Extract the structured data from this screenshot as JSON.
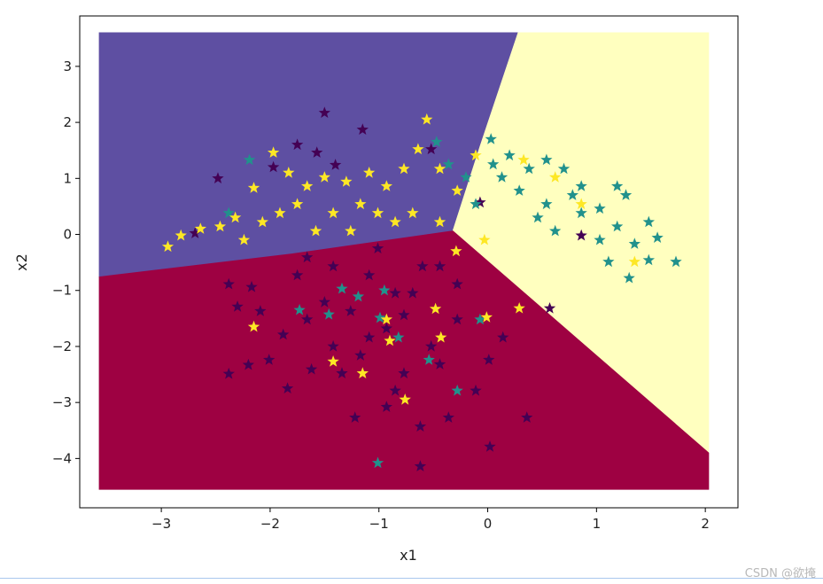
{
  "chart_data": {
    "type": "scatter",
    "title": "",
    "xlabel": "x1",
    "ylabel": "x2",
    "xlim": [
      -3.75,
      2.3
    ],
    "ylim": [
      -4.88,
      3.9
    ],
    "xticks": [
      -3,
      -2,
      -1,
      0,
      1,
      2
    ],
    "yticks": [
      3,
      2,
      1,
      0,
      -1,
      -2,
      -3,
      -4
    ],
    "xtick_labels": [
      "−3",
      "−2",
      "−1",
      "0",
      "1",
      "2"
    ],
    "ytick_labels": [
      "3",
      "2",
      "1",
      "0",
      "−1",
      "−2",
      "−3",
      "−4"
    ],
    "grid": false,
    "marker": "star",
    "regions": [
      {
        "class": 0,
        "color": "#5e4fa2",
        "polygon": [
          [
            -3.57,
            3.6
          ],
          [
            0.28,
            3.6
          ],
          [
            -0.07,
            1.57
          ],
          [
            -0.32,
            0.06
          ],
          [
            -1.8,
            -0.35
          ],
          [
            -3.57,
            -0.76
          ]
        ]
      },
      {
        "class": 1,
        "color": "#ffffbf",
        "polygon": [
          [
            0.28,
            3.6
          ],
          [
            2.03,
            3.6
          ],
          [
            2.03,
            -3.9
          ],
          [
            -0.32,
            0.06
          ],
          [
            -0.07,
            1.57
          ]
        ]
      },
      {
        "class": 2,
        "color": "#9e0142",
        "polygon": [
          [
            -3.57,
            -0.76
          ],
          [
            -1.8,
            -0.35
          ],
          [
            -0.32,
            0.06
          ],
          [
            2.03,
            -3.9
          ],
          [
            2.03,
            -4.55
          ],
          [
            -3.57,
            -4.55
          ]
        ]
      }
    ],
    "series": [
      {
        "color": "#440154",
        "points": [
          [
            -1.5,
            2.17
          ],
          [
            -1.15,
            1.87
          ],
          [
            -2.48,
            1.0
          ],
          [
            -2.69,
            0.02
          ],
          [
            -1.75,
            1.6
          ],
          [
            -1.57,
            1.46
          ],
          [
            -1.4,
            1.24
          ],
          [
            -1.97,
            1.2
          ],
          [
            -2.38,
            -0.89
          ],
          [
            -2.17,
            -0.94
          ],
          [
            -2.3,
            -1.29
          ],
          [
            -2.09,
            -1.37
          ],
          [
            -1.88,
            -1.79
          ],
          [
            -2.2,
            -2.33
          ],
          [
            -2.38,
            -2.49
          ],
          [
            -2.01,
            -2.24
          ],
          [
            -1.62,
            -2.41
          ],
          [
            -1.84,
            -2.75
          ],
          [
            -1.22,
            -3.27
          ],
          [
            -0.93,
            -3.08
          ],
          [
            -0.62,
            -3.43
          ],
          [
            -0.36,
            -3.27
          ],
          [
            0.02,
            -3.79
          ],
          [
            0.36,
            -3.27
          ],
          [
            0.57,
            -1.32
          ],
          [
            0.14,
            -1.84
          ],
          [
            0.01,
            -2.24
          ],
          [
            -0.62,
            -4.14
          ],
          [
            -0.11,
            -2.79
          ],
          [
            -0.52,
            -2.0
          ],
          [
            -0.85,
            -1.05
          ],
          [
            -1.09,
            -0.73
          ],
          [
            -1.42,
            -0.57
          ],
          [
            -1.26,
            -1.37
          ],
          [
            -0.93,
            -1.68
          ],
          [
            -0.69,
            -1.05
          ],
          [
            -1.66,
            -0.41
          ],
          [
            -1.17,
            -2.16
          ],
          [
            -0.77,
            -2.48
          ],
          [
            -0.28,
            -1.52
          ],
          [
            -0.44,
            -0.57
          ],
          [
            0.86,
            -0.02
          ],
          [
            -0.07,
            0.57
          ],
          [
            -0.52,
            1.52
          ],
          [
            -1.5,
            -1.21
          ],
          [
            -1.09,
            -1.84
          ],
          [
            -1.34,
            -2.48
          ],
          [
            -0.85,
            -2.79
          ],
          [
            -1.66,
            -1.52
          ],
          [
            -0.6,
            -0.57
          ],
          [
            -1.01,
            -0.25
          ],
          [
            -0.28,
            -0.89
          ],
          [
            -1.42,
            -2.0
          ],
          [
            -1.75,
            -0.73
          ],
          [
            -0.77,
            -1.44
          ],
          [
            -0.44,
            -2.32
          ]
        ]
      },
      {
        "color": "#21918c",
        "points": [
          [
            0.03,
            1.7
          ],
          [
            0.2,
            1.41
          ],
          [
            0.38,
            1.17
          ],
          [
            0.54,
            1.33
          ],
          [
            0.7,
            1.17
          ],
          [
            0.86,
            0.86
          ],
          [
            1.19,
            0.86
          ],
          [
            1.27,
            0.7
          ],
          [
            1.48,
            0.22
          ],
          [
            1.56,
            -0.06
          ],
          [
            1.73,
            -0.49
          ],
          [
            1.3,
            -0.78
          ],
          [
            1.48,
            -0.46
          ],
          [
            1.11,
            -0.49
          ],
          [
            1.03,
            -0.1
          ],
          [
            0.86,
            0.38
          ],
          [
            0.54,
            0.54
          ],
          [
            0.29,
            0.78
          ],
          [
            0.13,
            1.02
          ],
          [
            -0.2,
            1.02
          ],
          [
            -0.36,
            1.25
          ],
          [
            -0.47,
            1.65
          ],
          [
            -0.11,
            0.54
          ],
          [
            1.19,
            0.14
          ],
          [
            1.35,
            -0.17
          ],
          [
            0.78,
            0.7
          ],
          [
            1.03,
            0.46
          ],
          [
            0.46,
            0.3
          ],
          [
            0.62,
            0.06
          ],
          [
            0.05,
            1.25
          ],
          [
            -2.19,
            1.33
          ],
          [
            -2.38,
            0.38
          ],
          [
            -1.01,
            -4.08
          ],
          [
            -1.46,
            -1.43
          ],
          [
            -1.73,
            -1.35
          ],
          [
            -1.19,
            -1.11
          ],
          [
            -0.95,
            -1.0
          ],
          [
            -0.82,
            -1.84
          ],
          [
            -0.54,
            -2.24
          ],
          [
            -0.07,
            -1.52
          ],
          [
            -0.99,
            -1.49
          ],
          [
            -0.28,
            -2.79
          ],
          [
            -1.34,
            -0.97
          ]
        ]
      },
      {
        "color": "#fde725",
        "points": [
          [
            -2.94,
            -0.22
          ],
          [
            -2.82,
            -0.02
          ],
          [
            -2.64,
            0.1
          ],
          [
            -2.46,
            0.14
          ],
          [
            -2.32,
            0.3
          ],
          [
            -2.15,
            0.83
          ],
          [
            -1.97,
            1.46
          ],
          [
            -1.83,
            1.1
          ],
          [
            -1.66,
            0.86
          ],
          [
            -1.5,
            1.02
          ],
          [
            -1.3,
            0.94
          ],
          [
            -1.09,
            1.1
          ],
          [
            -0.93,
            0.86
          ],
          [
            -0.77,
            1.17
          ],
          [
            -0.64,
            1.52
          ],
          [
            -0.56,
            2.05
          ],
          [
            -0.44,
            1.17
          ],
          [
            -0.28,
            0.78
          ],
          [
            -0.11,
            1.41
          ],
          [
            -0.03,
            -0.1
          ],
          [
            0.33,
            1.33
          ],
          [
            0.62,
            1.02
          ],
          [
            0.86,
            0.54
          ],
          [
            1.35,
            -0.49
          ],
          [
            -2.07,
            0.22
          ],
          [
            -1.91,
            0.38
          ],
          [
            -1.75,
            0.54
          ],
          [
            -1.42,
            0.38
          ],
          [
            -1.17,
            0.54
          ],
          [
            -0.85,
            0.22
          ],
          [
            -0.69,
            0.38
          ],
          [
            -0.44,
            0.22
          ],
          [
            -1.58,
            0.06
          ],
          [
            -1.26,
            0.06
          ],
          [
            -1.01,
            0.38
          ],
          [
            -2.24,
            -0.1
          ],
          [
            -2.15,
            -1.65
          ],
          [
            -1.42,
            -2.27
          ],
          [
            -1.15,
            -2.48
          ],
          [
            -0.76,
            -2.95
          ],
          [
            -0.43,
            -1.84
          ],
          [
            -0.01,
            -1.48
          ],
          [
            0.29,
            -1.32
          ],
          [
            -0.93,
            -1.52
          ],
          [
            -0.9,
            -1.9
          ],
          [
            -0.29,
            -0.3
          ],
          [
            -0.48,
            -1.33
          ]
        ]
      }
    ]
  },
  "watermark": "CSDN @欲掩"
}
